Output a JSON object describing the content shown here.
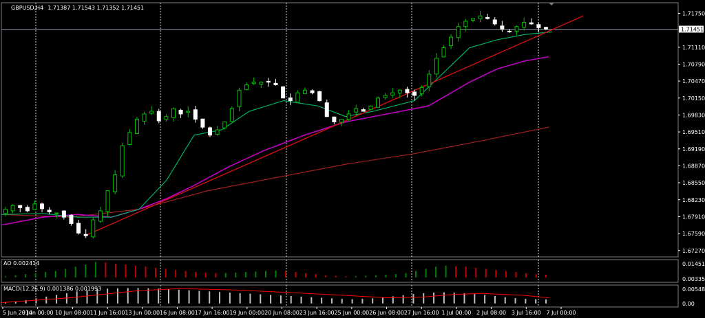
{
  "header": {
    "symbol": "GBPUSD,H4",
    "ohlc": "1.71387 1.71543 1.71352 1.71451"
  },
  "current_price_label": "1.71451",
  "ao_panel": {
    "title": "AO 0.002414",
    "axis_labels": [
      "0.014515",
      "0.003357"
    ]
  },
  "macd_panel": {
    "title": "MACD(12,26,9) 0.001386 0.001993",
    "axis_labels": [
      "0.005484",
      "0.00"
    ]
  },
  "colors": {
    "background": "#000000",
    "grid": "#ffffff",
    "bull": "#00c000",
    "bear": "#ffffff",
    "sma_fast": "#00b060",
    "sma_mid": "#c000c0",
    "sma_slow": "#a02020",
    "trendline": "#d01010",
    "ao_up": "#008000",
    "ao_down": "#c00000",
    "macd_hist": "#c0c0c0",
    "macd_signal": "#ff0000"
  },
  "chart_data": {
    "type": "candlestick",
    "price_ticks": [
      "1.71750",
      "1.71110",
      "1.70790",
      "1.70470",
      "1.70150",
      "1.69830",
      "1.69510",
      "1.69190",
      "1.68870",
      "1.68550",
      "1.68230",
      "1.67910",
      "1.67590",
      "1.67270"
    ],
    "ylim": [
      1.6715,
      1.7195
    ],
    "time_labels": [
      "5 Jun 2014",
      "9 Jun 00:00",
      "10 Jun 08:00",
      "11 Jun 16:00",
      "13 Jun 00:00",
      "16 Jun 08:00",
      "17 Jun 16:00",
      "19 Jun 00:00",
      "20 Jun 08:00",
      "23 Jun 16:00",
      "25 Jun 00:00",
      "26 Jun 08:00",
      "27 Jun 16:00",
      "1 Jul 00:00",
      "2 Jul 08:00",
      "3 Jul 16:00",
      "7 Jul 00:00"
    ],
    "close_path": [
      1.6805,
      1.6812,
      1.6808,
      1.6802,
      1.6815,
      1.6806,
      1.68,
      1.6798,
      1.679,
      1.6778,
      1.676,
      1.6755,
      1.6785,
      1.6802,
      1.684,
      1.687,
      1.6925,
      1.695,
      1.6975,
      1.6985,
      1.699,
      1.6972,
      1.698,
      1.6995,
      1.6985,
      1.699,
      1.6975,
      1.696,
      1.6945,
      1.6955,
      1.697,
      1.6995,
      1.703,
      1.704,
      1.7045,
      1.7045,
      1.7045,
      1.704,
      1.7015,
      1.701,
      1.7025,
      1.703,
      1.7025,
      1.701,
      1.698,
      1.697,
      1.6975,
      1.6985,
      1.6995,
      1.699,
      1.7,
      1.7015,
      1.702,
      1.7025,
      1.703,
      1.7025,
      1.702,
      1.7035,
      1.706,
      1.709,
      1.711,
      1.713,
      1.715,
      1.716,
      1.7165,
      1.717,
      1.7165,
      1.7155,
      1.7145,
      1.714,
      1.715,
      1.7158,
      1.7155,
      1.7148,
      1.7145
    ],
    "sma_fast": [
      [
        0,
        1.6795
      ],
      [
        60,
        1.6797
      ],
      [
        110,
        1.679
      ],
      [
        160,
        1.679
      ],
      [
        200,
        1.6805
      ],
      [
        240,
        1.686
      ],
      [
        280,
        1.6945
      ],
      [
        320,
        1.6955
      ],
      [
        360,
        1.699
      ],
      [
        410,
        1.701
      ],
      [
        460,
        1.7
      ],
      [
        500,
        1.698
      ],
      [
        540,
        1.699
      ],
      [
        600,
        1.701
      ],
      [
        640,
        1.706
      ],
      [
        680,
        1.711
      ],
      [
        720,
        1.7125
      ],
      [
        760,
        1.7135
      ],
      [
        800,
        1.714
      ]
    ],
    "sma_mid": [
      [
        0,
        1.6775
      ],
      [
        60,
        1.679
      ],
      [
        110,
        1.6795
      ],
      [
        160,
        1.679
      ],
      [
        200,
        1.6805
      ],
      [
        240,
        1.6825
      ],
      [
        280,
        1.685
      ],
      [
        330,
        1.6885
      ],
      [
        380,
        1.6915
      ],
      [
        440,
        1.6945
      ],
      [
        500,
        1.697
      ],
      [
        560,
        1.6985
      ],
      [
        620,
        1.7
      ],
      [
        680,
        1.7045
      ],
      [
        720,
        1.707
      ],
      [
        760,
        1.7085
      ],
      [
        795,
        1.7093
      ]
    ],
    "sma_slow": [
      [
        0,
        1.6795
      ],
      [
        100,
        1.679
      ],
      [
        200,
        1.6805
      ],
      [
        300,
        1.684
      ],
      [
        400,
        1.6865
      ],
      [
        500,
        1.689
      ],
      [
        600,
        1.691
      ],
      [
        700,
        1.6935
      ],
      [
        795,
        1.696
      ]
    ],
    "trendline": [
      [
        125,
        1.6757
      ],
      [
        845,
        1.717
      ]
    ],
    "current_price": 1.71451,
    "ao": {
      "ylim": [
        -0.004,
        0.016
      ],
      "values": [
        0.001,
        0.002,
        0.003,
        0.004,
        0.005,
        0.006,
        0.008,
        0.01,
        0.012,
        0.0145,
        0.014,
        0.013,
        0.012,
        0.011,
        0.01,
        0.009,
        0.008,
        0.007,
        0.006,
        0.005,
        0.0045,
        0.004,
        0.004,
        0.0045,
        0.005,
        0.0055,
        0.006,
        0.0065,
        0.006,
        0.005,
        0.004,
        0.003,
        0.002,
        0.0015,
        0.001,
        0.0012,
        0.0015,
        0.002,
        0.0025,
        0.003,
        0.004,
        0.006,
        0.008,
        0.01,
        0.011,
        0.0105,
        0.01,
        0.009,
        0.008,
        0.007,
        0.006,
        0.005,
        0.004,
        0.003,
        0.0024
      ]
    },
    "macd": {
      "ylim": [
        -0.001,
        0.0062
      ],
      "hist": [
        0.0005,
        0.0008,
        0.0012,
        0.0018,
        0.0024,
        0.003,
        0.0036,
        0.0042,
        0.0046,
        0.005,
        0.0052,
        0.0053,
        0.0054,
        0.0054,
        0.0053,
        0.0052,
        0.005,
        0.0048,
        0.0046,
        0.0044,
        0.0042,
        0.004,
        0.0038,
        0.0036,
        0.0034,
        0.0032,
        0.003,
        0.0028,
        0.0026,
        0.0024,
        0.0022,
        0.002,
        0.0018,
        0.0016,
        0.0015,
        0.0016,
        0.0018,
        0.0021,
        0.0025,
        0.0029,
        0.0033,
        0.0036,
        0.0038,
        0.0039,
        0.0038,
        0.0036,
        0.0033,
        0.003,
        0.0026,
        0.0022,
        0.0019,
        0.0016,
        0.0015,
        0.0014
      ],
      "signal": [
        [
          0,
          0.0003
        ],
        [
          100,
          0.002
        ],
        [
          200,
          0.0045
        ],
        [
          260,
          0.0052
        ],
        [
          340,
          0.0047
        ],
        [
          420,
          0.0038
        ],
        [
          500,
          0.0028
        ],
        [
          560,
          0.002
        ],
        [
          610,
          0.0022
        ],
        [
          660,
          0.0032
        ],
        [
          700,
          0.0035
        ],
        [
          760,
          0.0028
        ],
        [
          795,
          0.002
        ]
      ]
    }
  }
}
